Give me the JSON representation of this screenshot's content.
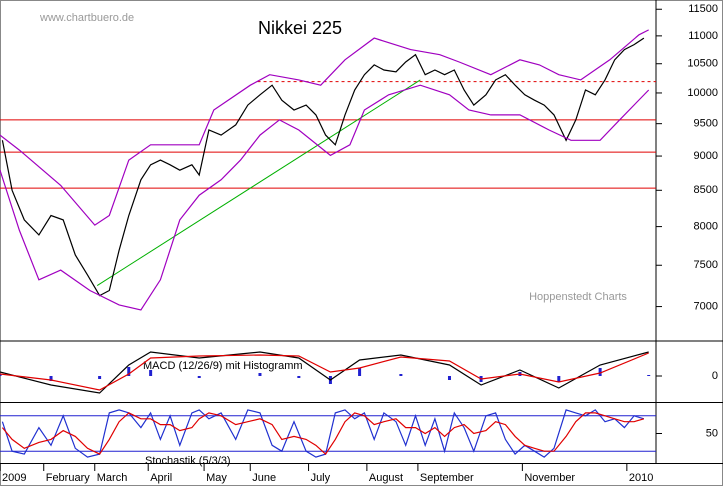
{
  "chart_data": [
    {
      "type": "line",
      "title": "Nikkei 225",
      "watermark": "www.chartbuero.de",
      "source": "Hoppenstedt Charts",
      "log_scale": true,
      "xlim": [
        0,
        270
      ],
      "ylim": [
        6620,
        11640
      ],
      "yticks": [
        7000,
        7500,
        8000,
        8500,
        9000,
        9500,
        10000,
        10500,
        11000,
        11500
      ],
      "series": [
        {
          "color": "#000000",
          "x": [
            1,
            5,
            10,
            16,
            21,
            26,
            31,
            36,
            41,
            45,
            49,
            53,
            58,
            62,
            66,
            70,
            74,
            79,
            82,
            86,
            91,
            97,
            102,
            107,
            112,
            116,
            121,
            126,
            130,
            134,
            138,
            142,
            146,
            150,
            154,
            158,
            163,
            167,
            171,
            175,
            179,
            183,
            187,
            191,
            195,
            200,
            204,
            208,
            212,
            216,
            220,
            224,
            228,
            233,
            237,
            241,
            245,
            249,
            253,
            257,
            261,
            265
          ],
          "values": [
            9240,
            8500,
            8090,
            7890,
            8150,
            8090,
            7630,
            7380,
            7130,
            7190,
            7690,
            8150,
            8650,
            8870,
            8940,
            8870,
            8790,
            8870,
            8720,
            9400,
            9320,
            9480,
            9800,
            9970,
            10130,
            9880,
            9720,
            9800,
            9640,
            9320,
            9170,
            9640,
            10050,
            10310,
            10480,
            10390,
            10360,
            10530,
            10660,
            10310,
            10390,
            10310,
            10390,
            10050,
            9800,
            9970,
            10220,
            10310,
            10130,
            9970,
            9880,
            9800,
            9640,
            9240,
            9560,
            10050,
            9970,
            10220,
            10570,
            10750,
            10840,
            10960
          ]
        },
        {
          "color": "#a000c0",
          "x": [
            0,
            8,
            25,
            39,
            45,
            53,
            62,
            82,
            88,
            103,
            111,
            123,
            132,
            142,
            154,
            169,
            181,
            189,
            202,
            214,
            222,
            230,
            239,
            251,
            263,
            267
          ],
          "values": [
            9320,
            9090,
            8570,
            8020,
            8150,
            8940,
            9170,
            9170,
            9720,
            10130,
            10310,
            10220,
            10130,
            10570,
            10960,
            10750,
            10660,
            10530,
            10310,
            10570,
            10480,
            10310,
            10220,
            10570,
            11020,
            11110
          ]
        },
        {
          "color": "#a000c0",
          "x": [
            0,
            8,
            16,
            25,
            37,
            49,
            58,
            66,
            74,
            82,
            91,
            99,
            107,
            115,
            123,
            136,
            144,
            150,
            160,
            173,
            185,
            193,
            202,
            214,
            226,
            235,
            247,
            255,
            267
          ],
          "values": [
            8790,
            7950,
            7320,
            7440,
            7190,
            7020,
            6960,
            7320,
            8090,
            8430,
            8650,
            8940,
            9320,
            9560,
            9400,
            9010,
            9170,
            9720,
            9970,
            10130,
            9970,
            9720,
            9640,
            9640,
            9400,
            9240,
            9240,
            9560,
            10050
          ]
        }
      ],
      "hlines": [
        {
          "value": 9560,
          "color": "#e00000"
        },
        {
          "value": 9060,
          "color": "#e00000"
        },
        {
          "value": 8530,
          "color": "#e00000"
        },
        {
          "value": 10190,
          "color": "#e00000",
          "dashed": true,
          "x": [
            106,
            270
          ]
        }
      ],
      "trendline": {
        "color": "#00b000",
        "x": [
          40,
          173
        ],
        "values": [
          7250,
          10220
        ]
      }
    },
    {
      "type": "line",
      "title": "MACD (12/26/9) mit Histogramm",
      "xlim": [
        0,
        270
      ],
      "ylim": [
        -260,
        340
      ],
      "yticks": [
        0
      ],
      "series": [
        {
          "type": "bar",
          "color": "#2020d0",
          "x": [
            0,
            21,
            41,
            53,
            62,
            82,
            107,
            123,
            136,
            148,
            165,
            185,
            198,
            214,
            230,
            247,
            267
          ],
          "values": [
            20,
            -50,
            -30,
            90,
            60,
            -20,
            30,
            -20,
            -80,
            80,
            20,
            -40,
            -60,
            40,
            -60,
            80,
            10
          ]
        },
        {
          "color": "#000000",
          "x": [
            0,
            21,
            41,
            53,
            62,
            82,
            107,
            123,
            136,
            148,
            165,
            185,
            198,
            214,
            230,
            247,
            267
          ],
          "values": [
            40,
            -90,
            -170,
            110,
            240,
            180,
            240,
            180,
            -40,
            160,
            210,
            110,
            -90,
            60,
            -120,
            110,
            240
          ]
        },
        {
          "color": "#e00000",
          "x": [
            0,
            21,
            41,
            53,
            62,
            82,
            107,
            123,
            136,
            148,
            165,
            185,
            198,
            214,
            230,
            247,
            267
          ],
          "values": [
            20,
            -40,
            -140,
            20,
            180,
            200,
            210,
            200,
            40,
            80,
            190,
            150,
            -30,
            20,
            -60,
            30,
            230
          ]
        }
      ]
    },
    {
      "type": "line",
      "title": "Stochastik (5/3/3)",
      "xlim": [
        0,
        270
      ],
      "ylim": [
        0,
        100
      ],
      "yticks": [
        50
      ],
      "levels": [
        80,
        20
      ],
      "level_color": "#2020d0",
      "xticks": [
        {
          "value": 0,
          "label": "2009"
        },
        {
          "value": 18,
          "label": "February"
        },
        {
          "value": 39,
          "label": "March"
        },
        {
          "value": 61,
          "label": "April"
        },
        {
          "value": 84,
          "label": "May"
        },
        {
          "value": 103,
          "label": "June"
        },
        {
          "value": 127,
          "label": "July"
        },
        {
          "value": 151,
          "label": "August"
        },
        {
          "value": 172,
          "label": "September"
        },
        {
          "value": 215,
          "label": "November"
        },
        {
          "value": 258,
          "label": "2010"
        }
      ],
      "series": [
        {
          "color": "#2030d0",
          "x": [
            1,
            5,
            10,
            16,
            21,
            26,
            31,
            36,
            41,
            45,
            49,
            53,
            58,
            62,
            66,
            70,
            74,
            79,
            82,
            86,
            91,
            97,
            102,
            107,
            112,
            116,
            121,
            126,
            130,
            134,
            138,
            142,
            146,
            150,
            154,
            158,
            163,
            167,
            171,
            175,
            179,
            183,
            187,
            191,
            195,
            200,
            204,
            208,
            212,
            216,
            220,
            224,
            228,
            233,
            237,
            241,
            245,
            249,
            253,
            257,
            261,
            265
          ],
          "values": [
            70,
            20,
            15,
            60,
            30,
            80,
            25,
            10,
            15,
            85,
            90,
            85,
            60,
            85,
            40,
            80,
            30,
            85,
            90,
            75,
            85,
            40,
            90,
            85,
            30,
            20,
            70,
            20,
            10,
            15,
            85,
            90,
            75,
            85,
            40,
            85,
            70,
            30,
            80,
            30,
            75,
            20,
            85,
            60,
            20,
            80,
            85,
            40,
            15,
            30,
            20,
            10,
            25,
            90,
            85,
            80,
            90,
            70,
            75,
            60,
            80,
            75
          ]
        },
        {
          "color": "#e00000",
          "x": [
            1,
            5,
            10,
            16,
            21,
            26,
            31,
            36,
            41,
            45,
            49,
            53,
            58,
            62,
            66,
            70,
            74,
            79,
            82,
            86,
            91,
            97,
            102,
            107,
            112,
            116,
            121,
            126,
            130,
            134,
            138,
            142,
            146,
            150,
            154,
            158,
            163,
            167,
            171,
            175,
            179,
            183,
            187,
            191,
            195,
            200,
            204,
            208,
            212,
            216,
            220,
            224,
            228,
            233,
            237,
            241,
            245,
            249,
            253,
            257,
            261,
            265
          ],
          "values": [
            60,
            40,
            25,
            35,
            40,
            55,
            45,
            25,
            15,
            40,
            70,
            85,
            75,
            75,
            65,
            65,
            55,
            60,
            75,
            85,
            80,
            65,
            70,
            75,
            65,
            40,
            45,
            40,
            30,
            15,
            40,
            70,
            85,
            80,
            65,
            70,
            75,
            60,
            60,
            50,
            60,
            45,
            60,
            65,
            50,
            55,
            70,
            65,
            45,
            30,
            25,
            20,
            20,
            45,
            70,
            85,
            85,
            80,
            75,
            70,
            70,
            75
          ]
        }
      ]
    }
  ]
}
